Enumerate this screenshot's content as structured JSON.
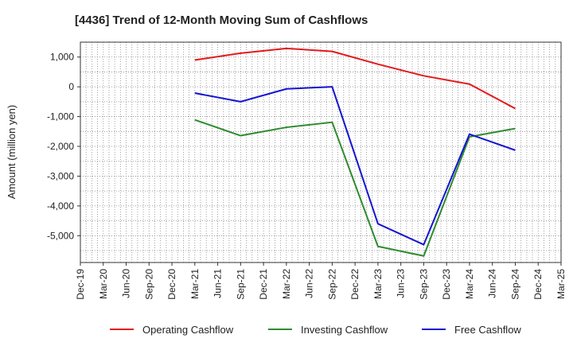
{
  "chart_data": {
    "type": "line",
    "title": "[4436]  Trend of 12-Month Moving Sum of Cashflows",
    "ylabel": "Amount (million yen)",
    "xlabel": "",
    "categories": [
      "Dec-19",
      "Mar-20",
      "Jun-20",
      "Sep-20",
      "Dec-20",
      "Mar-21",
      "Jun-21",
      "Sep-21",
      "Dec-21",
      "Mar-22",
      "Jun-22",
      "Sep-22",
      "Dec-22",
      "Mar-23",
      "Jun-23",
      "Sep-23",
      "Dec-23",
      "Mar-24",
      "Jun-24",
      "Sep-24",
      "Dec-24",
      "Mar-25"
    ],
    "yticks": [
      1000,
      0,
      -1000,
      -2000,
      -3000,
      -4000,
      -5000
    ],
    "ytick_labels": [
      "1,000",
      "0",
      "-1,000",
      "-2,000",
      "-3,000",
      "-4,000",
      "-5,000"
    ],
    "ylim": [
      -5900,
      1500
    ],
    "grid": true,
    "legend_position": "bottom",
    "series": [
      {
        "name": "Operating Cashflow",
        "color": "#e31a1c",
        "points": [
          {
            "x": "Mar-21",
            "y": 900
          },
          {
            "x": "Sep-21",
            "y": 1130
          },
          {
            "x": "Mar-22",
            "y": 1290
          },
          {
            "x": "Sep-22",
            "y": 1190
          },
          {
            "x": "Mar-23",
            "y": 760
          },
          {
            "x": "Sep-23",
            "y": 370
          },
          {
            "x": "Mar-24",
            "y": 90
          },
          {
            "x": "Sep-24",
            "y": -730
          }
        ]
      },
      {
        "name": "Investing Cashflow",
        "color": "#2e8b2e",
        "points": [
          {
            "x": "Mar-21",
            "y": -1110
          },
          {
            "x": "Sep-21",
            "y": -1640
          },
          {
            "x": "Mar-22",
            "y": -1360
          },
          {
            "x": "Sep-22",
            "y": -1190
          },
          {
            "x": "Mar-23",
            "y": -5360
          },
          {
            "x": "Sep-23",
            "y": -5680
          },
          {
            "x": "Mar-24",
            "y": -1680
          },
          {
            "x": "Sep-24",
            "y": -1400
          }
        ]
      },
      {
        "name": "Free Cashflow",
        "color": "#1414d2",
        "points": [
          {
            "x": "Mar-21",
            "y": -210
          },
          {
            "x": "Sep-21",
            "y": -500
          },
          {
            "x": "Mar-22",
            "y": -70
          },
          {
            "x": "Sep-22",
            "y": 0
          },
          {
            "x": "Mar-23",
            "y": -4600
          },
          {
            "x": "Sep-23",
            "y": -5300
          },
          {
            "x": "Mar-24",
            "y": -1590
          },
          {
            "x": "Sep-24",
            "y": -2130
          }
        ]
      }
    ]
  }
}
